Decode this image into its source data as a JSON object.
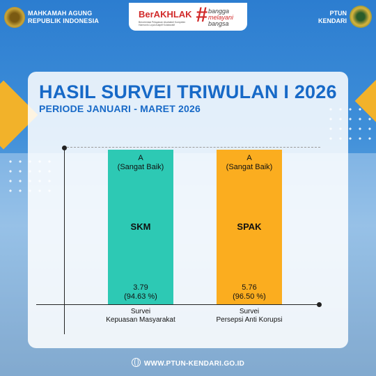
{
  "header": {
    "left_org": [
      "MAHKAMAH AGUNG",
      "REPUBLIK INDONESIA"
    ],
    "right_org": [
      "PTUN",
      "KENDARI"
    ],
    "brand": {
      "main": "BerAKHLAK",
      "sub": "Berorientasi Pelayanan Akuntabel Kompeten Harmonis Loyal Adaptif Kolaboratif",
      "hash": "#",
      "tagline": [
        "bangga",
        "melayani",
        "bangsa"
      ]
    }
  },
  "title": "HASIL SURVEI TRIWULAN I 2026",
  "subtitle": "PERIODE JANUARI - MARET 2026",
  "chart_data": {
    "type": "bar",
    "categories": [
      "Survei Kepuasan Masyarakat",
      "Survei Persepsi Anti Korupsi"
    ],
    "category_lines": [
      [
        "Survei",
        "Kepuasan Masyarakat"
      ],
      [
        "Survei",
        "Persepsi Anti Korupsi"
      ]
    ],
    "series": [
      {
        "values": [
          3.79,
          5.76
        ],
        "percent_labels": [
          "(94.63 %)",
          "(96.50 %)"
        ],
        "bar_labels": [
          "SKM",
          "SPAK"
        ],
        "grade_lines": [
          [
            "A",
            "(Sangat Baik)"
          ],
          [
            "A",
            "(Sangat Baik)"
          ]
        ],
        "colors": [
          "#2dc9b4",
          "#fbad1f"
        ]
      }
    ],
    "value_labels": [
      "3.79",
      "5.76"
    ],
    "bar_fill_fraction": [
      1.0,
      1.0
    ],
    "grid": true,
    "legend": "none"
  },
  "footer": {
    "url": "WWW.PTUN-KENDARI.GO.ID",
    "icon": "globe-icon"
  },
  "colors": {
    "title": "#1769c7",
    "accent": "#f2b22a",
    "bar_skm": "#2dc9b4",
    "bar_spak": "#fbad1f"
  }
}
